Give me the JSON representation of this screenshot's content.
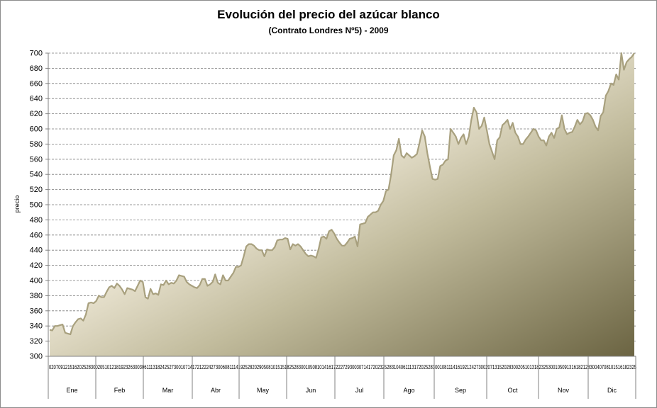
{
  "chart_data": {
    "type": "area",
    "title": "Evolución del precio del azúcar blanco",
    "subtitle": "(Contrato Londres Nº5)  - 2009",
    "ylabel": "precio",
    "ylim": [
      300,
      700
    ],
    "yticks": [
      300,
      320,
      340,
      360,
      380,
      400,
      420,
      440,
      460,
      480,
      500,
      520,
      540,
      560,
      580,
      600,
      620,
      640,
      660,
      680,
      700
    ],
    "grid": true,
    "legend": "none",
    "x_day_labels": "02070912151620252830020510121819232630030611131824252730010714172122242730060811141925282029050810151518252830010508101416172227293003071417202325283104061113172025283001081114161921242730020713152028300205101318232530010509131618212830040708101516182325",
    "months": [
      "Ene",
      "Feb",
      "Mar",
      "Abr",
      "May",
      "Jun",
      "Jul",
      "Ago",
      "Sep",
      "Oct",
      "Nov",
      "Dic"
    ],
    "values": [
      335,
      334,
      340,
      340,
      341,
      342,
      331,
      330,
      329,
      340,
      345,
      349,
      350,
      347,
      355,
      370,
      371,
      370,
      373,
      380,
      378,
      378,
      385,
      391,
      393,
      390,
      396,
      393,
      388,
      382,
      390,
      389,
      388,
      386,
      393,
      400,
      398,
      378,
      376,
      389,
      382,
      383,
      381,
      395,
      394,
      400,
      395,
      397,
      396,
      400,
      407,
      406,
      405,
      398,
      395,
      393,
      391,
      390,
      394,
      402,
      402,
      393,
      395,
      398,
      408,
      397,
      395,
      407,
      400,
      400,
      405,
      410,
      418,
      418,
      420,
      432,
      445,
      448,
      448,
      446,
      442,
      440,
      440,
      432,
      441,
      440,
      440,
      444,
      453,
      454,
      454,
      456,
      455,
      441,
      448,
      446,
      448,
      445,
      440,
      435,
      432,
      433,
      432,
      430,
      442,
      457,
      458,
      455,
      465,
      467,
      462,
      455,
      450,
      446,
      446,
      450,
      455,
      456,
      458,
      445,
      474,
      475,
      476,
      484,
      487,
      490,
      490,
      492,
      500,
      505,
      518,
      520,
      540,
      565,
      572,
      587,
      565,
      562,
      568,
      565,
      562,
      564,
      567,
      582,
      598,
      590,
      568,
      550,
      534,
      533,
      534,
      551,
      553,
      558,
      560,
      600,
      595,
      590,
      580,
      588,
      593,
      580,
      590,
      612,
      628,
      622,
      600,
      604,
      615,
      598,
      580,
      570,
      560,
      585,
      589,
      605,
      608,
      612,
      600,
      608,
      595,
      590,
      580,
      580,
      586,
      590,
      595,
      600,
      598,
      590,
      585,
      585,
      578,
      590,
      595,
      588,
      600,
      602,
      618,
      600,
      593,
      595,
      596,
      603,
      612,
      606,
      610,
      620,
      621,
      618,
      612,
      603,
      598,
      617,
      622,
      644,
      650,
      660,
      658,
      672,
      665,
      700,
      678,
      688,
      692,
      695,
      700
    ]
  }
}
